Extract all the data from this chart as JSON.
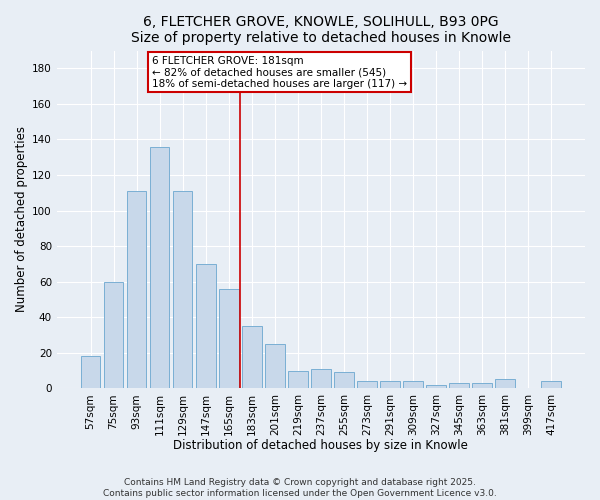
{
  "title": "6, FLETCHER GROVE, KNOWLE, SOLIHULL, B93 0PG",
  "subtitle": "Size of property relative to detached houses in Knowle",
  "xlabel": "Distribution of detached houses by size in Knowle",
  "ylabel": "Number of detached properties",
  "categories": [
    "57sqm",
    "75sqm",
    "93sqm",
    "111sqm",
    "129sqm",
    "147sqm",
    "165sqm",
    "183sqm",
    "201sqm",
    "219sqm",
    "237sqm",
    "255sqm",
    "273sqm",
    "291sqm",
    "309sqm",
    "327sqm",
    "345sqm",
    "363sqm",
    "381sqm",
    "399sqm",
    "417sqm"
  ],
  "values": [
    18,
    60,
    111,
    136,
    111,
    70,
    56,
    35,
    25,
    10,
    11,
    9,
    4,
    4,
    4,
    2,
    3,
    3,
    5,
    0,
    4
  ],
  "bar_color": "#c8d8ea",
  "bar_edge_color": "#7aafd4",
  "vline_x": 6.5,
  "annotation_label": "6 FLETCHER GROVE: 181sqm",
  "annotation_line1": "← 82% of detached houses are smaller (545)",
  "annotation_line2": "18% of semi-detached houses are larger (117) →",
  "annotation_box_color": "#cc0000",
  "vline_color": "#cc0000",
  "background_color": "#e8eef5",
  "plot_bg_color": "#e8eef5",
  "ylim": [
    0,
    190
  ],
  "yticks": [
    0,
    20,
    40,
    60,
    80,
    100,
    120,
    140,
    160,
    180
  ],
  "footnote": "Contains HM Land Registry data © Crown copyright and database right 2025.\nContains public sector information licensed under the Open Government Licence v3.0.",
  "title_fontsize": 10,
  "xlabel_fontsize": 8.5,
  "ylabel_fontsize": 8.5,
  "tick_fontsize": 7.5,
  "annotation_fontsize": 7.5,
  "footnote_fontsize": 6.5
}
